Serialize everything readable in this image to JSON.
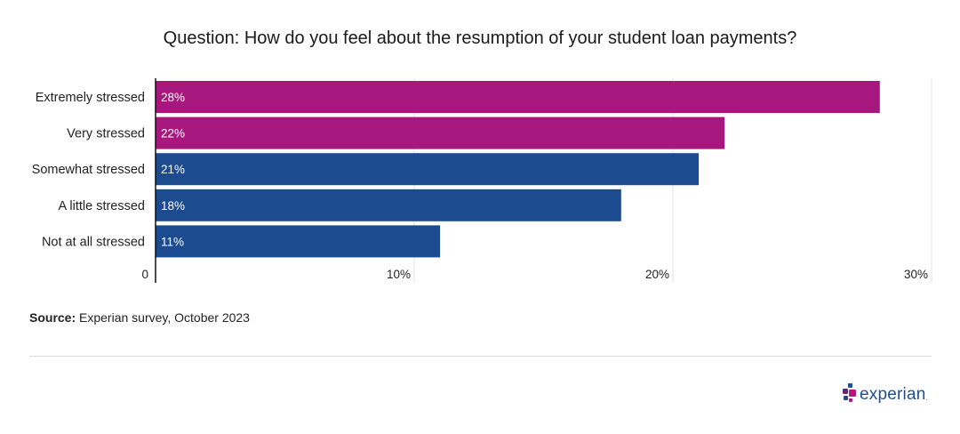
{
  "chart_data": {
    "type": "bar",
    "orientation": "horizontal",
    "title": "Question: How do you feel about the resumption of your student loan payments?",
    "categories": [
      "Extremely stressed",
      "Very stressed",
      "Somewhat stressed",
      "A little stressed",
      "Not at all stressed"
    ],
    "values": [
      28,
      22,
      21,
      18,
      11
    ],
    "value_labels": [
      "28%",
      "22%",
      "21%",
      "18%",
      "11%"
    ],
    "bar_colors": [
      "#a8177e",
      "#a8177e",
      "#1d4b8f",
      "#1d4b8f",
      "#1d4b8f"
    ],
    "xlim": [
      0,
      30
    ],
    "x_ticks": [
      0,
      10,
      20,
      30
    ],
    "x_tick_labels": [
      "0",
      "10%",
      "20%",
      "30%"
    ],
    "grid": true,
    "xlabel": "",
    "ylabel": ""
  },
  "source": {
    "label": "Source:",
    "text": "Experian survey, October 2023"
  },
  "logo": {
    "text": "experian",
    "colors": [
      "#1d4f91",
      "#6d2077",
      "#b5177e",
      "#26478d"
    ]
  }
}
